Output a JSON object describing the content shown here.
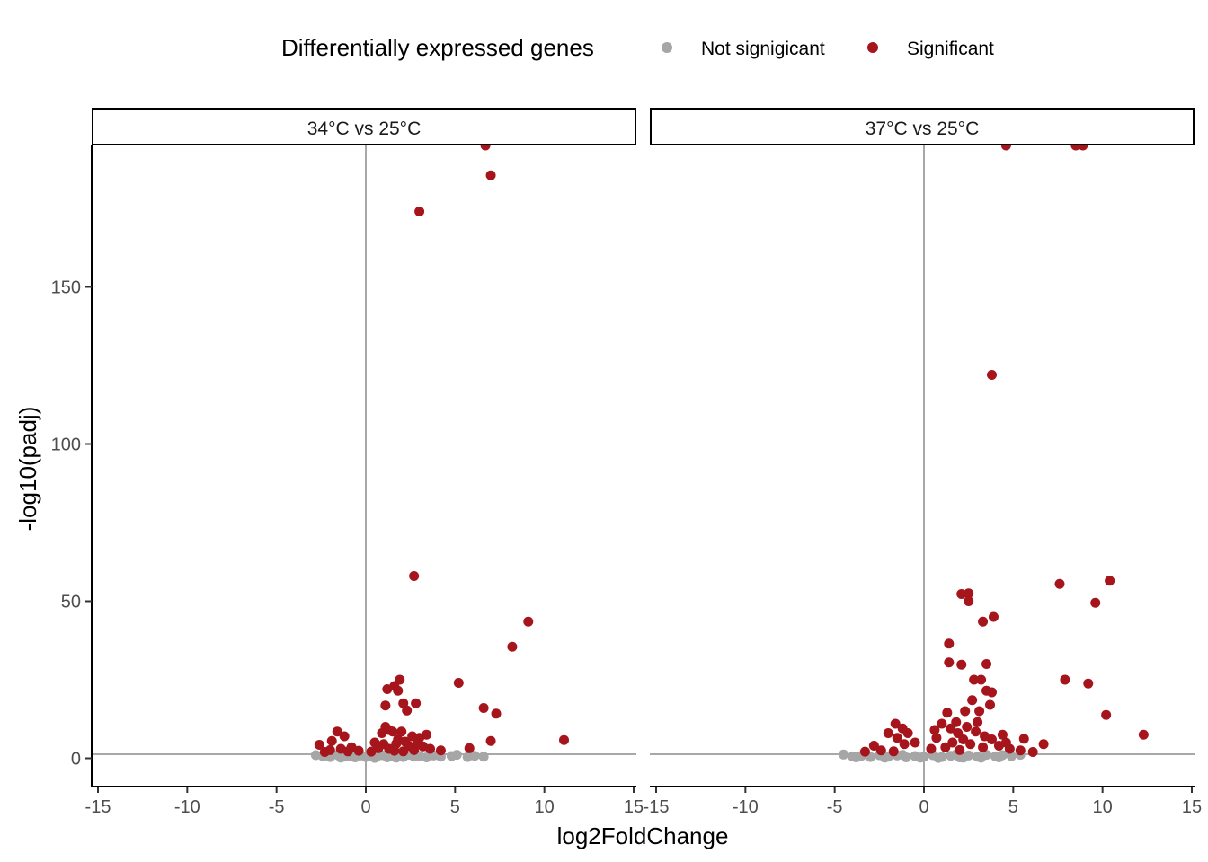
{
  "chart_data": {
    "type": "scatter",
    "title": "",
    "xlabel": "log2FoldChange",
    "ylabel": "-log10(padj)",
    "xlim": [
      -15,
      15
    ],
    "ylim": [
      -9,
      195
    ],
    "xticks": [
      -15,
      -10,
      -5,
      0,
      5,
      10,
      15
    ],
    "yticks": [
      0,
      50,
      100,
      150
    ],
    "reference_lines": {
      "vertical_x": 0,
      "horizontal_y": 1.3
    },
    "grid": false,
    "legend": {
      "title": "Differentially expressed genes",
      "position": "top",
      "entries": [
        {
          "name": "Not signigicant",
          "color": "#a6a6a6"
        },
        {
          "name": "Significant",
          "color": "#a6141c"
        }
      ]
    },
    "panels": [
      {
        "label": "34°C vs 25°C",
        "significant": [
          [
            6.7,
            195
          ],
          [
            7.0,
            185.5
          ],
          [
            3.0,
            174
          ],
          [
            2.7,
            58
          ],
          [
            9.1,
            43.5
          ],
          [
            8.2,
            35.5
          ],
          [
            5.2,
            24
          ],
          [
            1.9,
            25
          ],
          [
            1.6,
            23
          ],
          [
            1.2,
            22
          ],
          [
            1.8,
            21.5
          ],
          [
            2.1,
            17.5
          ],
          [
            2.8,
            17.5
          ],
          [
            1.1,
            16.8
          ],
          [
            2.3,
            15.2
          ],
          [
            6.6,
            16
          ],
          [
            7.3,
            14.2
          ],
          [
            11.1,
            5.8
          ],
          [
            7.0,
            5.5
          ],
          [
            5.8,
            3.2
          ],
          [
            -1.6,
            8.5
          ],
          [
            -1.2,
            7.0
          ],
          [
            -2.6,
            4.3
          ],
          [
            -1.9,
            5.5
          ],
          [
            -0.8,
            3.5
          ],
          [
            1.1,
            10
          ],
          [
            1.3,
            9
          ],
          [
            0.9,
            8
          ],
          [
            2.0,
            8.5
          ],
          [
            1.5,
            8.5
          ],
          [
            3.4,
            7.5
          ],
          [
            2.6,
            7
          ],
          [
            3.0,
            6.5
          ],
          [
            2.9,
            5
          ],
          [
            0.5,
            5
          ],
          [
            1.8,
            6
          ],
          [
            2.4,
            4
          ],
          [
            1.0,
            4.5
          ],
          [
            3.6,
            3
          ],
          [
            4.2,
            2.5
          ],
          [
            1.3,
            3
          ],
          [
            2.1,
            2.2
          ],
          [
            -1.4,
            3.0
          ],
          [
            -2.0,
            2.6
          ],
          [
            -0.4,
            2.4
          ],
          [
            0.7,
            3.2
          ],
          [
            3.2,
            3.8
          ],
          [
            2.2,
            5.3
          ],
          [
            1.7,
            4.6
          ],
          [
            0.3,
            2.1
          ],
          [
            -1.0,
            2.2
          ],
          [
            -2.3,
            2.0
          ],
          [
            1.6,
            2.4
          ],
          [
            2.7,
            2.6
          ]
        ],
        "not_significant": [
          [
            -2.8,
            1.0
          ],
          [
            -2.4,
            0.6
          ],
          [
            -2.0,
            0.4
          ],
          [
            -1.6,
            1.1
          ],
          [
            -1.2,
            0.5
          ],
          [
            -0.9,
            0.8
          ],
          [
            -0.6,
            0.3
          ],
          [
            -0.3,
            0.9
          ],
          [
            0.0,
            0.4
          ],
          [
            0.3,
            0.7
          ],
          [
            0.6,
            0.5
          ],
          [
            0.9,
            1.0
          ],
          [
            1.2,
            0.3
          ],
          [
            1.5,
            0.8
          ],
          [
            1.8,
            0.6
          ],
          [
            2.1,
            0.4
          ],
          [
            2.4,
            1.1
          ],
          [
            2.7,
            0.5
          ],
          [
            3.0,
            0.8
          ],
          [
            3.4,
            0.3
          ],
          [
            3.8,
            0.9
          ],
          [
            4.2,
            0.5
          ],
          [
            4.8,
            0.7
          ],
          [
            5.1,
            1.1
          ],
          [
            5.7,
            0.4
          ],
          [
            6.1,
            0.8
          ],
          [
            6.6,
            0.5
          ],
          [
            -1.4,
            0.2
          ],
          [
            0.5,
            0.1
          ],
          [
            1.7,
            0.2
          ]
        ]
      },
      {
        "label": "37°C vs 25°C",
        "significant": [
          [
            4.6,
            195
          ],
          [
            8.5,
            195
          ],
          [
            8.9,
            195
          ],
          [
            3.8,
            122
          ],
          [
            10.4,
            56.5
          ],
          [
            7.6,
            55.5
          ],
          [
            2.1,
            52.3
          ],
          [
            2.5,
            52.5
          ],
          [
            2.5,
            50
          ],
          [
            9.6,
            49.5
          ],
          [
            3.9,
            45
          ],
          [
            3.3,
            43.5
          ],
          [
            1.4,
            36.5
          ],
          [
            1.4,
            30.5
          ],
          [
            2.1,
            29.8
          ],
          [
            3.5,
            30
          ],
          [
            3.2,
            25
          ],
          [
            2.8,
            25
          ],
          [
            7.9,
            25
          ],
          [
            9.2,
            23.8
          ],
          [
            3.5,
            21.5
          ],
          [
            3.8,
            21
          ],
          [
            2.7,
            18.5
          ],
          [
            3.7,
            17
          ],
          [
            2.3,
            15
          ],
          [
            3.1,
            15
          ],
          [
            10.2,
            13.8
          ],
          [
            12.3,
            7.5
          ],
          [
            5.6,
            6.2
          ],
          [
            6.7,
            4.5
          ],
          [
            4.4,
            7.5
          ],
          [
            1.3,
            14.5
          ],
          [
            1.0,
            11.0
          ],
          [
            1.8,
            11.5
          ],
          [
            3.0,
            11.5
          ],
          [
            0.6,
            9
          ],
          [
            2.4,
            10
          ],
          [
            1.5,
            9.5
          ],
          [
            0.7,
            6.5
          ],
          [
            1.9,
            8
          ],
          [
            2.9,
            8.5
          ],
          [
            3.4,
            7
          ],
          [
            2.2,
            6
          ],
          [
            3.8,
            6
          ],
          [
            -1.6,
            11
          ],
          [
            -1.2,
            9.5
          ],
          [
            -2.0,
            8
          ],
          [
            -0.9,
            8
          ],
          [
            -1.5,
            6.5
          ],
          [
            -2.8,
            4
          ],
          [
            -0.5,
            5
          ],
          [
            -1.1,
            4.5
          ],
          [
            4.8,
            3
          ],
          [
            5.4,
            2.5
          ],
          [
            6.1,
            2
          ],
          [
            0.4,
            3
          ],
          [
            1.2,
            3.5
          ],
          [
            1.6,
            5
          ],
          [
            2.6,
            4.5
          ],
          [
            3.3,
            3.5
          ],
          [
            -2.4,
            2.5
          ],
          [
            -1.7,
            2.2
          ],
          [
            -3.3,
            2.1
          ],
          [
            4.2,
            4
          ],
          [
            4.6,
            5
          ],
          [
            2.0,
            2.6
          ]
        ],
        "not_significant": [
          [
            -4.5,
            1.2
          ],
          [
            -4.0,
            0.6
          ],
          [
            -3.5,
            0.8
          ],
          [
            -3.0,
            0.4
          ],
          [
            -2.5,
            1.0
          ],
          [
            -2.0,
            0.5
          ],
          [
            -1.5,
            0.9
          ],
          [
            -1.0,
            0.3
          ],
          [
            -0.5,
            0.7
          ],
          [
            0.0,
            0.5
          ],
          [
            0.5,
            1.0
          ],
          [
            1.0,
            0.4
          ],
          [
            1.5,
            0.8
          ],
          [
            2.0,
            0.3
          ],
          [
            2.5,
            0.9
          ],
          [
            3.0,
            0.5
          ],
          [
            3.5,
            1.1
          ],
          [
            4.0,
            0.6
          ],
          [
            4.4,
            1.0
          ],
          [
            4.9,
            0.7
          ],
          [
            5.4,
            1.1
          ],
          [
            -2.2,
            0.2
          ],
          [
            0.8,
            0.1
          ],
          [
            2.2,
            0.2
          ],
          [
            -3.8,
            0.3
          ],
          [
            3.2,
            0.2
          ],
          [
            -1.2,
            1.1
          ],
          [
            1.8,
            1.2
          ],
          [
            -0.2,
            0.2
          ],
          [
            4.2,
            0.3
          ]
        ]
      }
    ]
  }
}
